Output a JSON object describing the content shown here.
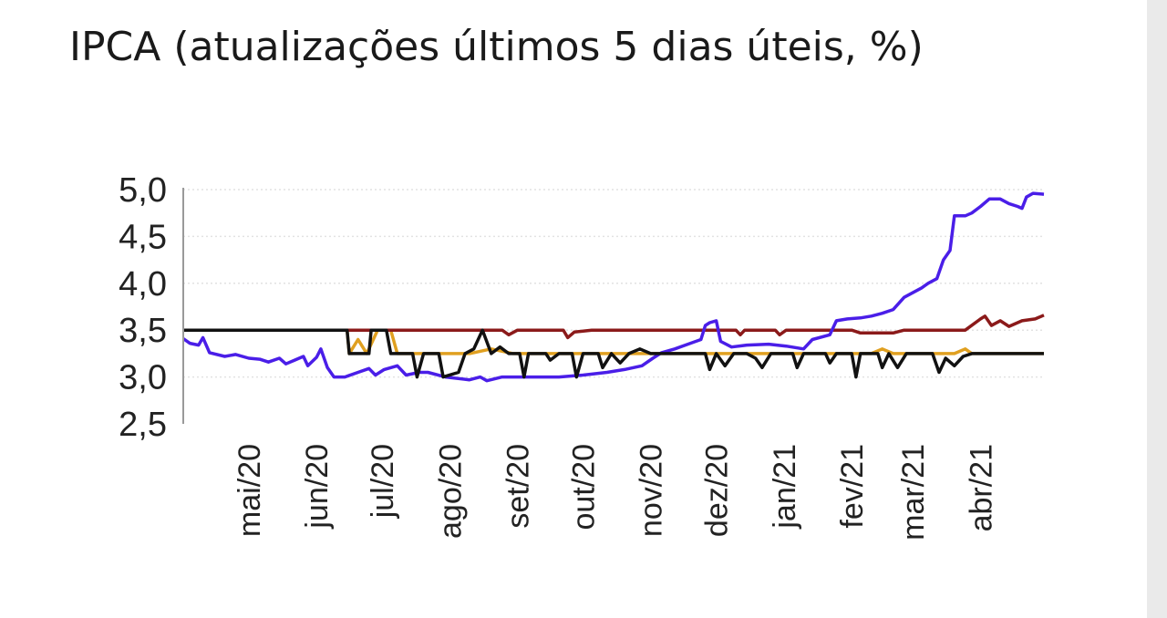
{
  "title": "IPCA (atualizações últimos 5 dias úteis, %)",
  "chart_data": {
    "type": "line",
    "title": "IPCA (atualizações últimos 5 dias úteis, %)",
    "xlabel": "",
    "ylabel": "",
    "ylim": [
      2.5,
      5.0
    ],
    "y_ticks": [
      "5,0",
      "4,5",
      "4,0",
      "3,5",
      "3,0",
      "2,5"
    ],
    "y_tick_values": [
      5.0,
      4.5,
      4.0,
      3.5,
      3.0,
      2.5
    ],
    "x_ticks": [
      "mai/20",
      "jun/20",
      "jul/20",
      "ago/20",
      "set/20",
      "out/20",
      "nov/20",
      "dez/20",
      "jan/21",
      "fev/21",
      "mar/21",
      "abr/21"
    ],
    "grid": "horizontal dotted",
    "legend": "none",
    "series": [
      {
        "color": "#e0a020",
        "points": [
          [
            "2020-04-01",
            3.5
          ],
          [
            "2020-06-15",
            3.5
          ],
          [
            "2020-06-16",
            3.25
          ],
          [
            "2020-06-20",
            3.4
          ],
          [
            "2020-06-24",
            3.25
          ],
          [
            "2020-06-29",
            3.5
          ],
          [
            "2020-07-05",
            3.5
          ],
          [
            "2020-07-08",
            3.25
          ],
          [
            "2020-08-10",
            3.25
          ],
          [
            "2020-08-20",
            3.3
          ],
          [
            "2020-08-30",
            3.25
          ],
          [
            "2020-09-15",
            3.25
          ],
          [
            "2020-10-20",
            3.25
          ],
          [
            "2020-12-01",
            3.25
          ],
          [
            "2021-01-15",
            3.25
          ],
          [
            "2021-02-10",
            3.25
          ],
          [
            "2021-02-15",
            3.3
          ],
          [
            "2021-02-20",
            3.25
          ],
          [
            "2021-03-20",
            3.25
          ],
          [
            "2021-03-25",
            3.3
          ],
          [
            "2021-03-28",
            3.25
          ],
          [
            "2021-04-30",
            3.25
          ]
        ]
      },
      {
        "color": "#8b1a1a",
        "points": [
          [
            "2020-04-01",
            3.5
          ],
          [
            "2020-08-25",
            3.5
          ],
          [
            "2020-08-28",
            3.45
          ],
          [
            "2020-09-01",
            3.5
          ],
          [
            "2020-09-22",
            3.5
          ],
          [
            "2020-09-24",
            3.42
          ],
          [
            "2020-09-27",
            3.48
          ],
          [
            "2020-10-05",
            3.5
          ],
          [
            "2020-11-20",
            3.5
          ],
          [
            "2020-12-10",
            3.5
          ],
          [
            "2020-12-12",
            3.45
          ],
          [
            "2020-12-14",
            3.5
          ],
          [
            "2020-12-28",
            3.5
          ],
          [
            "2020-12-30",
            3.45
          ],
          [
            "2021-01-02",
            3.5
          ],
          [
            "2021-02-01",
            3.5
          ],
          [
            "2021-02-05",
            3.47
          ],
          [
            "2021-02-20",
            3.47
          ],
          [
            "2021-02-25",
            3.5
          ],
          [
            "2021-03-25",
            3.5
          ],
          [
            "2021-04-01",
            3.62
          ],
          [
            "2021-04-03",
            3.65
          ],
          [
            "2021-04-06",
            3.55
          ],
          [
            "2021-04-10",
            3.6
          ],
          [
            "2021-04-14",
            3.54
          ],
          [
            "2021-04-20",
            3.6
          ],
          [
            "2021-04-26",
            3.62
          ],
          [
            "2021-04-30",
            3.66
          ]
        ]
      },
      {
        "color": "#4a1ee8",
        "points": [
          [
            "2020-04-01",
            3.41
          ],
          [
            "2020-04-04",
            3.36
          ],
          [
            "2020-04-08",
            3.34
          ],
          [
            "2020-04-10",
            3.42
          ],
          [
            "2020-04-13",
            3.26
          ],
          [
            "2020-04-20",
            3.22
          ],
          [
            "2020-04-25",
            3.24
          ],
          [
            "2020-05-01",
            3.2
          ],
          [
            "2020-05-06",
            3.19
          ],
          [
            "2020-05-10",
            3.16
          ],
          [
            "2020-05-15",
            3.2
          ],
          [
            "2020-05-18",
            3.14
          ],
          [
            "2020-05-22",
            3.18
          ],
          [
            "2020-05-26",
            3.22
          ],
          [
            "2020-05-28",
            3.12
          ],
          [
            "2020-06-01",
            3.21
          ],
          [
            "2020-06-03",
            3.3
          ],
          [
            "2020-06-06",
            3.1
          ],
          [
            "2020-06-09",
            3.0
          ],
          [
            "2020-06-14",
            3.0
          ],
          [
            "2020-06-20",
            3.05
          ],
          [
            "2020-06-25",
            3.09
          ],
          [
            "2020-06-28",
            3.02
          ],
          [
            "2020-07-02",
            3.08
          ],
          [
            "2020-07-08",
            3.12
          ],
          [
            "2020-07-12",
            3.02
          ],
          [
            "2020-07-18",
            3.05
          ],
          [
            "2020-07-22",
            3.05
          ],
          [
            "2020-07-30",
            3.0
          ],
          [
            "2020-08-10",
            2.97
          ],
          [
            "2020-08-15",
            3.0
          ],
          [
            "2020-08-18",
            2.96
          ],
          [
            "2020-08-25",
            3.0
          ],
          [
            "2020-09-05",
            3.0
          ],
          [
            "2020-09-15",
            3.0
          ],
          [
            "2020-09-20",
            3.0
          ],
          [
            "2020-10-01",
            3.02
          ],
          [
            "2020-10-12",
            3.05
          ],
          [
            "2020-10-20",
            3.08
          ],
          [
            "2020-10-28",
            3.12
          ],
          [
            "2020-11-02",
            3.2
          ],
          [
            "2020-11-06",
            3.26
          ],
          [
            "2020-11-12",
            3.3
          ],
          [
            "2020-11-18",
            3.35
          ],
          [
            "2020-11-24",
            3.4
          ],
          [
            "2020-11-26",
            3.55
          ],
          [
            "2020-11-28",
            3.58
          ],
          [
            "2020-12-01",
            3.6
          ],
          [
            "2020-12-03",
            3.38
          ],
          [
            "2020-12-08",
            3.32
          ],
          [
            "2020-12-15",
            3.34
          ],
          [
            "2020-12-25",
            3.35
          ],
          [
            "2021-01-02",
            3.33
          ],
          [
            "2021-01-10",
            3.3
          ],
          [
            "2021-01-14",
            3.4
          ],
          [
            "2021-01-22",
            3.45
          ],
          [
            "2021-01-25",
            3.6
          ],
          [
            "2021-01-30",
            3.62
          ],
          [
            "2021-02-05",
            3.63
          ],
          [
            "2021-02-10",
            3.65
          ],
          [
            "2021-02-15",
            3.68
          ],
          [
            "2021-02-20",
            3.72
          ],
          [
            "2021-02-25",
            3.85
          ],
          [
            "2021-03-01",
            3.9
          ],
          [
            "2021-03-05",
            3.95
          ],
          [
            "2021-03-08",
            4.0
          ],
          [
            "2021-03-12",
            4.05
          ],
          [
            "2021-03-15",
            4.25
          ],
          [
            "2021-03-18",
            4.35
          ],
          [
            "2021-03-20",
            4.72
          ],
          [
            "2021-03-25",
            4.72
          ],
          [
            "2021-03-28",
            4.75
          ],
          [
            "2021-04-01",
            4.82
          ],
          [
            "2021-04-05",
            4.9
          ],
          [
            "2021-04-10",
            4.9
          ],
          [
            "2021-04-14",
            4.85
          ],
          [
            "2021-04-18",
            4.82
          ],
          [
            "2021-04-20",
            4.8
          ],
          [
            "2021-04-22",
            4.92
          ],
          [
            "2021-04-25",
            4.96
          ],
          [
            "2021-04-30",
            4.95
          ]
        ]
      },
      {
        "color": "#111111",
        "points": [
          [
            "2020-04-01",
            3.5
          ],
          [
            "2020-06-15",
            3.5
          ],
          [
            "2020-06-16",
            3.25
          ],
          [
            "2020-06-25",
            3.25
          ],
          [
            "2020-06-26",
            3.5
          ],
          [
            "2020-07-03",
            3.5
          ],
          [
            "2020-07-05",
            3.25
          ],
          [
            "2020-07-15",
            3.25
          ],
          [
            "2020-07-17",
            3.0
          ],
          [
            "2020-07-20",
            3.25
          ],
          [
            "2020-07-27",
            3.25
          ],
          [
            "2020-07-29",
            3.0
          ],
          [
            "2020-08-05",
            3.05
          ],
          [
            "2020-08-08",
            3.25
          ],
          [
            "2020-08-12",
            3.3
          ],
          [
            "2020-08-16",
            3.5
          ],
          [
            "2020-08-20",
            3.25
          ],
          [
            "2020-08-24",
            3.32
          ],
          [
            "2020-08-28",
            3.25
          ],
          [
            "2020-09-02",
            3.25
          ],
          [
            "2020-09-04",
            3.0
          ],
          [
            "2020-09-06",
            3.25
          ],
          [
            "2020-09-14",
            3.25
          ],
          [
            "2020-09-16",
            3.18
          ],
          [
            "2020-09-20",
            3.25
          ],
          [
            "2020-09-26",
            3.25
          ],
          [
            "2020-09-28",
            3.0
          ],
          [
            "2020-10-01",
            3.25
          ],
          [
            "2020-10-08",
            3.25
          ],
          [
            "2020-10-10",
            3.1
          ],
          [
            "2020-10-14",
            3.25
          ],
          [
            "2020-10-18",
            3.15
          ],
          [
            "2020-10-22",
            3.25
          ],
          [
            "2020-10-27",
            3.3
          ],
          [
            "2020-11-01",
            3.25
          ],
          [
            "2020-11-20",
            3.25
          ],
          [
            "2020-11-26",
            3.25
          ],
          [
            "2020-11-28",
            3.08
          ],
          [
            "2020-12-01",
            3.25
          ],
          [
            "2020-12-05",
            3.12
          ],
          [
            "2020-12-09",
            3.25
          ],
          [
            "2020-12-15",
            3.25
          ],
          [
            "2020-12-19",
            3.2
          ],
          [
            "2020-12-22",
            3.1
          ],
          [
            "2020-12-26",
            3.25
          ],
          [
            "2021-01-05",
            3.25
          ],
          [
            "2021-01-07",
            3.1
          ],
          [
            "2021-01-10",
            3.25
          ],
          [
            "2021-01-20",
            3.25
          ],
          [
            "2021-01-22",
            3.15
          ],
          [
            "2021-01-25",
            3.25
          ],
          [
            "2021-02-01",
            3.25
          ],
          [
            "2021-02-03",
            3.0
          ],
          [
            "2021-02-05",
            3.25
          ],
          [
            "2021-02-13",
            3.25
          ],
          [
            "2021-02-15",
            3.1
          ],
          [
            "2021-02-18",
            3.25
          ],
          [
            "2021-02-22",
            3.1
          ],
          [
            "2021-02-26",
            3.25
          ],
          [
            "2021-03-10",
            3.25
          ],
          [
            "2021-03-13",
            3.05
          ],
          [
            "2021-03-16",
            3.2
          ],
          [
            "2021-03-20",
            3.12
          ],
          [
            "2021-03-24",
            3.22
          ],
          [
            "2021-03-28",
            3.25
          ],
          [
            "2021-04-30",
            3.25
          ]
        ]
      }
    ]
  }
}
